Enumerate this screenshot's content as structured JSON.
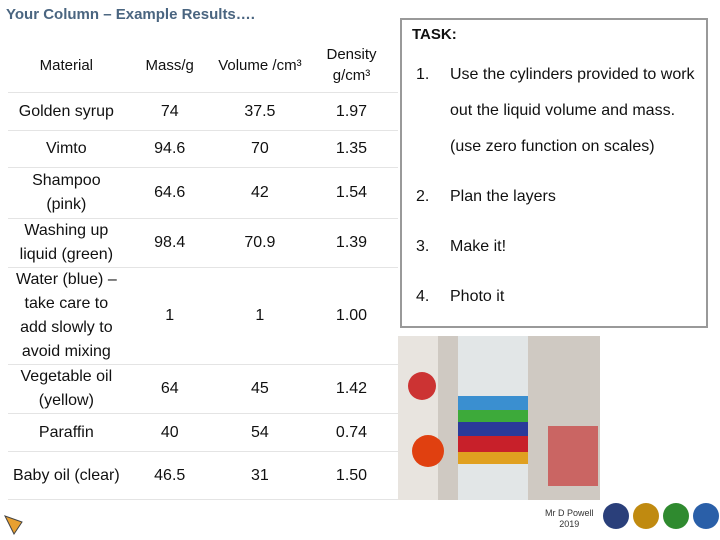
{
  "header": {
    "title": "Your Column – Example Results…."
  },
  "table": {
    "columns": [
      "Material",
      "Mass/g",
      "Volume /cm³",
      "Density g/cm³"
    ],
    "rows": [
      [
        "Golden syrup",
        "74",
        "37.5",
        "1.97"
      ],
      [
        "Vimto",
        "94.6",
        "70",
        "1.35"
      ],
      [
        "Shampoo (pink)",
        "64.6",
        "42",
        "1.54"
      ],
      [
        "Washing up liquid (green)",
        "98.4",
        "70.9",
        "1.39"
      ],
      [
        "Water (blue) – take care to add slowly to avoid mixing",
        "1",
        "1",
        "1.00"
      ],
      [
        "Vegetable oil (yellow)",
        "64",
        "45",
        "1.42"
      ],
      [
        "Paraffin",
        "40",
        "54",
        "0.74"
      ],
      [
        "Baby oil (clear)",
        "46.5",
        "31",
        "1.50"
      ]
    ]
  },
  "task": {
    "heading": "TASK:",
    "items": [
      {
        "number": "1.",
        "text": "Use the cylinders provided to work out the liquid volume and mass. (use zero function on scales)"
      },
      {
        "number": "2.",
        "text": "Plan the layers"
      },
      {
        "number": "3.",
        "text": "Make it!"
      },
      {
        "number": "4.",
        "text": "Photo it"
      }
    ]
  },
  "footer": {
    "author": "Mr D Powell",
    "year": "2019"
  }
}
